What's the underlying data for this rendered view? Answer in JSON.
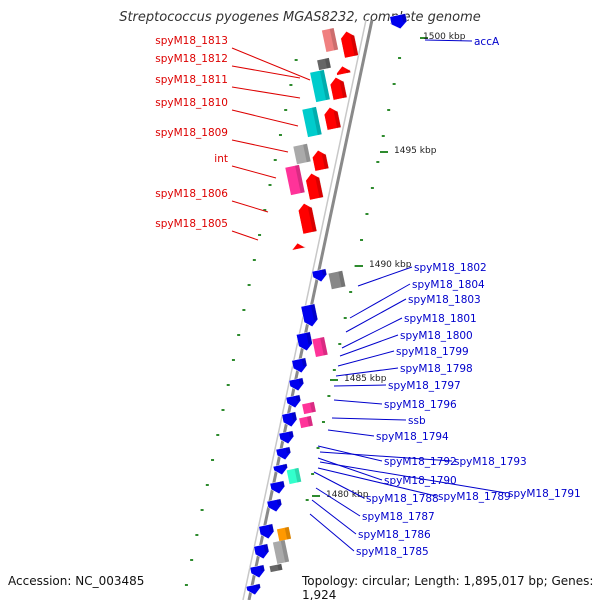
{
  "title": "Streptococcus pyogenes MGAS8232, complete genome",
  "accession": "Accession: NC_003485",
  "summary": "Topology: circular; Length: 1,895,017 bp; Genes: 1,924",
  "colors": {
    "backbone": "#8a8a8a",
    "tick": "#2e8b2e",
    "left_label": "#dd0000",
    "right_label": "#0000cc",
    "forward_gene": "#ff0000",
    "reverse_gene": "#0000ee",
    "rna_pink": "#ff3399",
    "rna_cyan": "#00cccc",
    "pseudo_gray": "#aaaaaa",
    "light_red": "#f08080",
    "orange": "#ff9900",
    "aqua": "#33ffcc"
  },
  "ticks": [
    {
      "label": "1500 kbp"
    },
    {
      "label": "1495 kbp"
    },
    {
      "label": "1490 kbp"
    },
    {
      "label": "1485 kbp"
    },
    {
      "label": "1480 kbp"
    }
  ],
  "left_labels": [
    "spyM18_1813",
    "spyM18_1812",
    "spyM18_1811",
    "spyM18_1810",
    "spyM18_1809",
    "int",
    "spyM18_1806",
    "spyM18_1805"
  ],
  "right_labels": [
    "accA",
    "spyM18_1802",
    "spyM18_1804",
    "spyM18_1803",
    "spyM18_1801",
    "spyM18_1800",
    "spyM18_1799",
    "spyM18_1798",
    "spyM18_1797",
    "spyM18_1796",
    "ssb",
    "spyM18_1794",
    "spyM18_1792",
    "spyM18_1793",
    "spyM18_1790",
    "spyM18_1791",
    "spyM18_1788",
    "spyM18_1789",
    "spyM18_1787",
    "spyM18_1786",
    "spyM18_1785"
  ]
}
